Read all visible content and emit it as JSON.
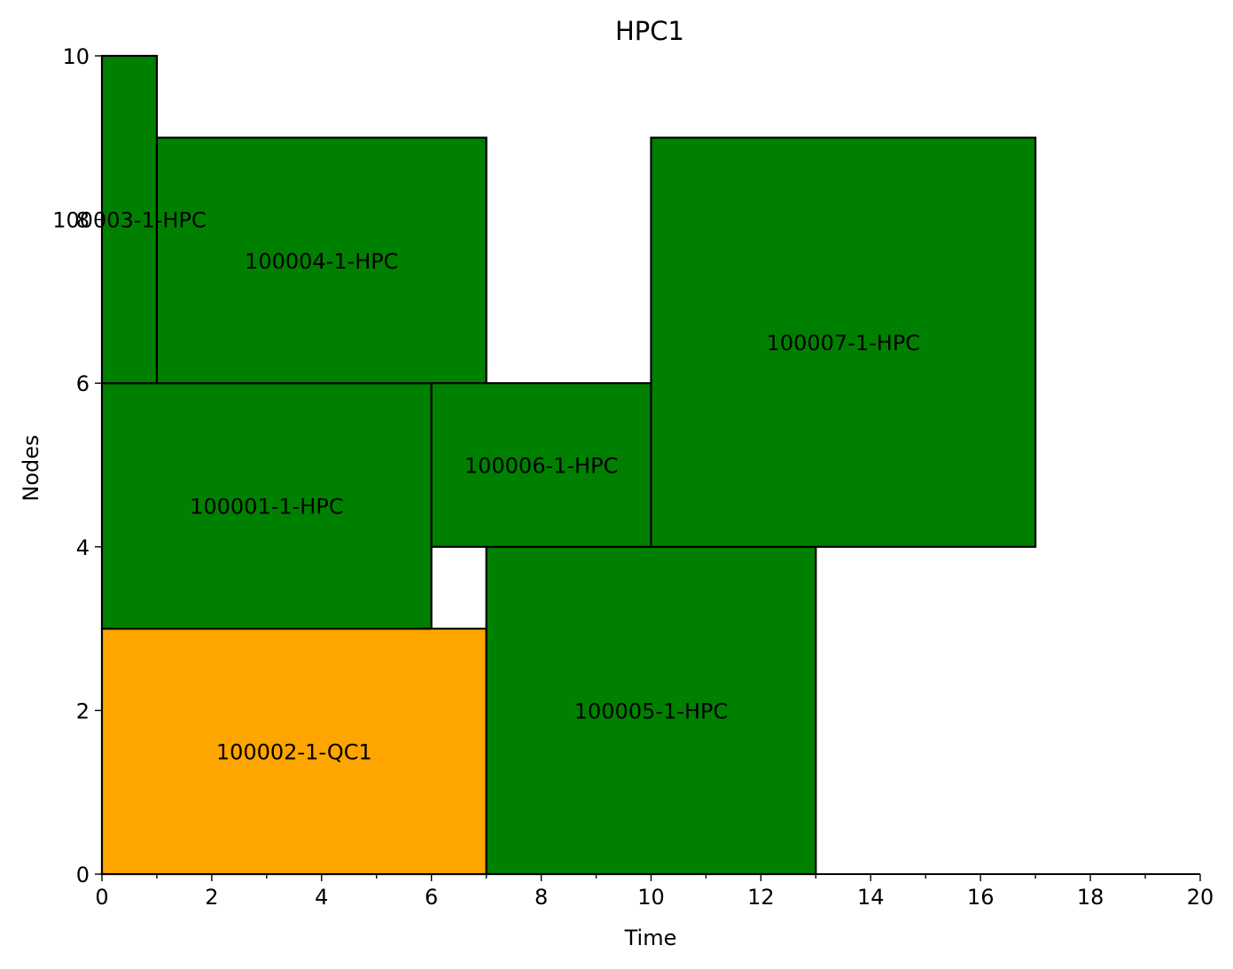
{
  "chart_data": {
    "type": "gantt",
    "title": "HPC1",
    "xlabel": "Time",
    "ylabel": "Nodes",
    "xlim": [
      0,
      20
    ],
    "ylim": [
      0,
      10
    ],
    "xticks": [
      0,
      2,
      4,
      6,
      8,
      10,
      12,
      14,
      16,
      18,
      20
    ],
    "xticks_minor": [
      1,
      3,
      5,
      7,
      9,
      11,
      13,
      15,
      17,
      19
    ],
    "yticks": [
      0,
      2,
      4,
      6,
      8,
      10
    ],
    "grid": false,
    "legend": "none",
    "colors": {
      "hpc": "#008000",
      "qc": "#FFA500"
    },
    "jobs": [
      {
        "label": "100002-1-QC1",
        "start": 0,
        "end": 7,
        "node_start": 0,
        "node_end": 3,
        "color": "#FFA500"
      },
      {
        "label": "100001-1-HPC",
        "start": 0,
        "end": 6,
        "node_start": 3,
        "node_end": 6,
        "color": "#008000"
      },
      {
        "label": "100003-1-HPC",
        "start": 0,
        "end": 1,
        "node_start": 6,
        "node_end": 10,
        "color": "#008000"
      },
      {
        "label": "100004-1-HPC",
        "start": 1,
        "end": 7,
        "node_start": 6,
        "node_end": 9,
        "color": "#008000"
      },
      {
        "label": "100005-1-HPC",
        "start": 7,
        "end": 13,
        "node_start": 0,
        "node_end": 4,
        "color": "#008000"
      },
      {
        "label": "100006-1-HPC",
        "start": 6,
        "end": 10,
        "node_start": 4,
        "node_end": 6,
        "color": "#008000"
      },
      {
        "label": "100007-1-HPC",
        "start": 10,
        "end": 17,
        "node_start": 4,
        "node_end": 9,
        "color": "#008000"
      }
    ]
  }
}
